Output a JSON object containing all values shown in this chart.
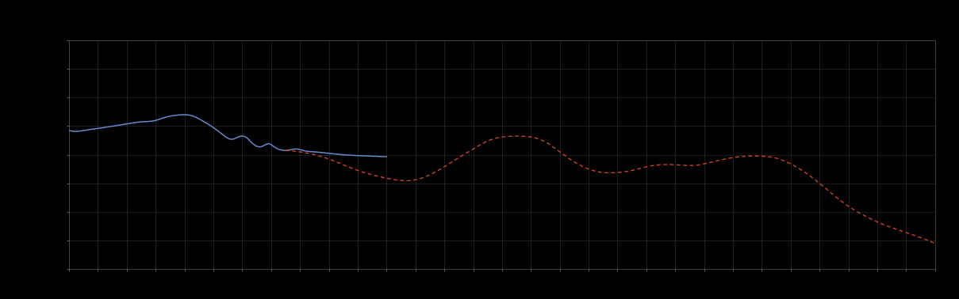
{
  "background_color": "#000000",
  "plot_bg_color": "#000000",
  "grid_color": "#2a2a2a",
  "axis_color": "#555555",
  "tick_color": "#888888",
  "blue_line_color": "#6688cc",
  "red_line_color": "#cc4422",
  "fig_width": 12.09,
  "fig_height": 3.78,
  "x_min": 0,
  "x_max": 30,
  "y_min": 0,
  "y_max": 8,
  "x_grid_step": 1,
  "y_grid_step": 1,
  "blue_pts": [
    [
      0,
      4.85
    ],
    [
      0.3,
      4.82
    ],
    [
      0.7,
      4.88
    ],
    [
      1.0,
      4.92
    ],
    [
      1.5,
      5.0
    ],
    [
      2.0,
      5.08
    ],
    [
      2.5,
      5.15
    ],
    [
      3.0,
      5.2
    ],
    [
      3.3,
      5.3
    ],
    [
      3.7,
      5.38
    ],
    [
      4.0,
      5.4
    ],
    [
      4.3,
      5.35
    ],
    [
      4.6,
      5.2
    ],
    [
      5.0,
      4.95
    ],
    [
      5.3,
      4.72
    ],
    [
      5.5,
      4.58
    ],
    [
      5.7,
      4.55
    ],
    [
      5.85,
      4.62
    ],
    [
      6.0,
      4.65
    ],
    [
      6.15,
      4.6
    ],
    [
      6.3,
      4.45
    ],
    [
      6.5,
      4.3
    ],
    [
      6.65,
      4.28
    ],
    [
      6.8,
      4.35
    ],
    [
      6.95,
      4.38
    ],
    [
      7.1,
      4.28
    ],
    [
      7.3,
      4.18
    ],
    [
      7.5,
      4.15
    ],
    [
      7.7,
      4.18
    ],
    [
      7.9,
      4.2
    ],
    [
      8.1,
      4.15
    ],
    [
      8.5,
      4.1
    ],
    [
      9.0,
      4.05
    ],
    [
      9.5,
      4.0
    ],
    [
      10.0,
      3.97
    ],
    [
      10.5,
      3.95
    ],
    [
      11.0,
      3.93
    ]
  ],
  "red_pts": [
    [
      7.5,
      4.15
    ],
    [
      8.0,
      4.1
    ],
    [
      8.5,
      4.0
    ],
    [
      9.0,
      3.85
    ],
    [
      9.5,
      3.65
    ],
    [
      10.0,
      3.45
    ],
    [
      10.5,
      3.3
    ],
    [
      11.0,
      3.18
    ],
    [
      11.5,
      3.1
    ],
    [
      12.0,
      3.12
    ],
    [
      12.5,
      3.3
    ],
    [
      13.0,
      3.58
    ],
    [
      13.5,
      3.9
    ],
    [
      14.0,
      4.2
    ],
    [
      14.5,
      4.48
    ],
    [
      15.0,
      4.62
    ],
    [
      15.5,
      4.65
    ],
    [
      16.0,
      4.62
    ],
    [
      16.5,
      4.45
    ],
    [
      17.0,
      4.1
    ],
    [
      17.5,
      3.75
    ],
    [
      18.0,
      3.5
    ],
    [
      18.5,
      3.38
    ],
    [
      19.0,
      3.38
    ],
    [
      19.5,
      3.45
    ],
    [
      20.0,
      3.58
    ],
    [
      20.5,
      3.65
    ],
    [
      21.0,
      3.65
    ],
    [
      21.5,
      3.62
    ],
    [
      22.0,
      3.68
    ],
    [
      22.5,
      3.8
    ],
    [
      23.0,
      3.9
    ],
    [
      23.5,
      3.95
    ],
    [
      24.0,
      3.95
    ],
    [
      24.5,
      3.88
    ],
    [
      25.0,
      3.68
    ],
    [
      25.5,
      3.38
    ],
    [
      26.0,
      3.0
    ],
    [
      26.5,
      2.58
    ],
    [
      27.0,
      2.2
    ],
    [
      27.5,
      1.9
    ],
    [
      28.0,
      1.65
    ],
    [
      28.5,
      1.45
    ],
    [
      29.0,
      1.28
    ],
    [
      29.5,
      1.1
    ],
    [
      30.0,
      0.9
    ]
  ]
}
